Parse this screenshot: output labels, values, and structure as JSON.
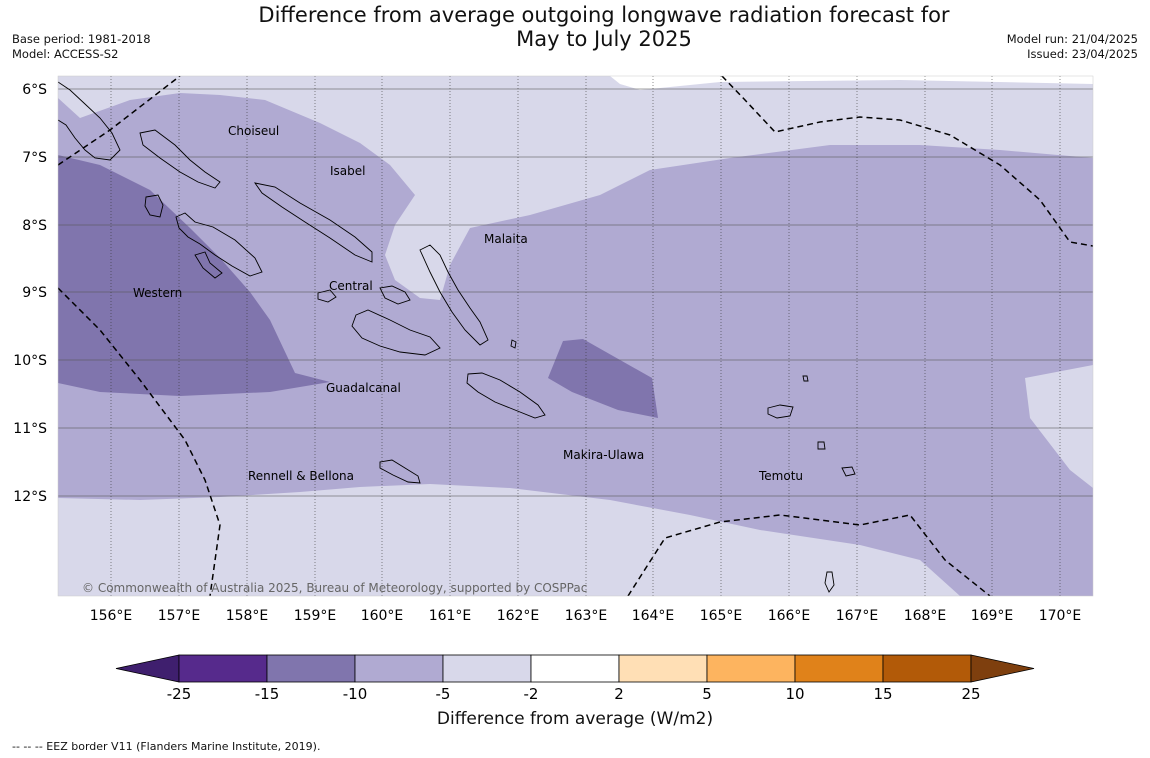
{
  "title": {
    "line1": "Difference from average outgoing longwave radiation forecast for",
    "line2": "May to July 2025"
  },
  "meta_left": {
    "base_period": "Base period: 1981-2018",
    "model": "Model: ACCESS-S2"
  },
  "meta_right": {
    "model_run": "Model run: 21/04/2025",
    "issued": "Issued: 23/04/2025"
  },
  "map": {
    "lat_labels": [
      "6°S",
      "7°S",
      "8°S",
      "9°S",
      "10°S",
      "11°S",
      "12°S"
    ],
    "lon_labels": [
      "156°E",
      "157°E",
      "158°E",
      "159°E",
      "160°E",
      "161°E",
      "162°E",
      "163°E",
      "164°E",
      "165°E",
      "166°E",
      "167°E",
      "168°E",
      "169°E",
      "170°E"
    ],
    "province_labels": [
      "Choiseul",
      "Isabel",
      "Malaita",
      "Western",
      "Central",
      "Guadalcanal",
      "Makira-Ulawa",
      "Rennell & Bellona",
      "Temotu"
    ],
    "copyright": "© Commonwealth of Australia 2025, Bureau of Meteorology, supported by COSPPac",
    "colors": {
      "lt_minus2": "#d8d8ea",
      "minus5_to_minus10": "#b0aad2",
      "minus10_to_minus15": "#8075ad",
      "coast": "#000000"
    }
  },
  "colorbar": {
    "ticks": [
      "-25",
      "-15",
      "-10",
      "-5",
      "-2",
      "2",
      "5",
      "10",
      "15",
      "25"
    ],
    "bins": [
      {
        "color": "#3f1f6e"
      },
      {
        "color": "#562a8c"
      },
      {
        "color": "#8075ad"
      },
      {
        "color": "#b0aad2"
      },
      {
        "color": "#d8d8ea"
      },
      {
        "color": "#ffffff"
      },
      {
        "color": "#ffdfb5"
      },
      {
        "color": "#fdb45f"
      },
      {
        "color": "#e0821a"
      },
      {
        "color": "#b25a08"
      },
      {
        "color": "#7e3f0e"
      }
    ],
    "label": "Difference from average (W/m2)"
  },
  "footnote": "--  --  -- EEZ border V11 (Flanders Marine Institute, 2019)."
}
